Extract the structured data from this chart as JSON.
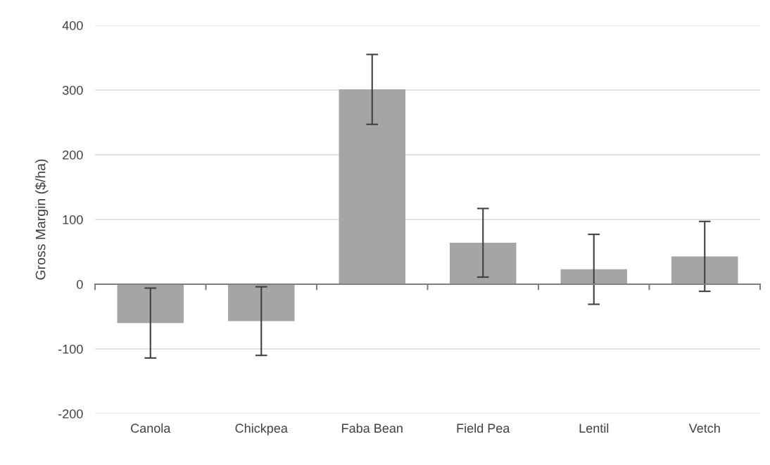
{
  "chart_data": {
    "type": "bar",
    "ylabel": "Gross Margin ($/ha)",
    "categories": [
      "Canola",
      "Chickpea",
      "Faba Bean",
      "Field Pea",
      "Lentil",
      "Vetch"
    ],
    "values": [
      -60,
      -57,
      301,
      64,
      23,
      43
    ],
    "errors": [
      54,
      53,
      54,
      53,
      54,
      54
    ],
    "color": "#a5a5a5",
    "ylim": [
      -200,
      400
    ],
    "yticks": [
      -200,
      -100,
      0,
      100,
      200,
      300,
      400
    ],
    "grid": "y"
  }
}
